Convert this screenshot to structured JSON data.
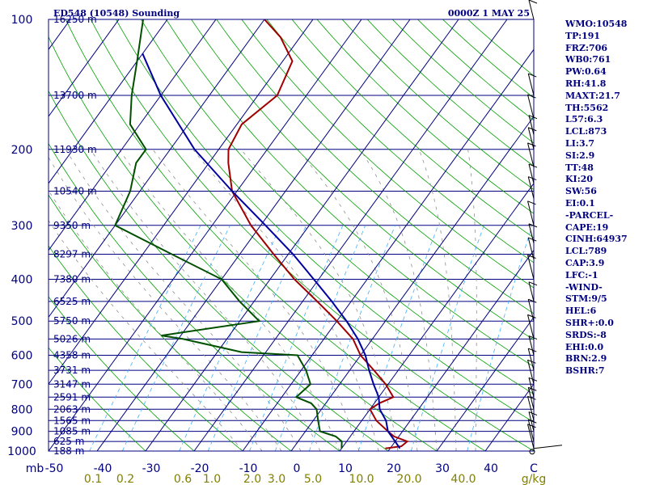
{
  "header": {
    "station": "ED548 (10548) Sounding",
    "time": "0000Z  1 MAY 25"
  },
  "chart_data": {
    "type": "skew-t",
    "pressure_ticks": [
      "100",
      "200",
      "300",
      "400",
      "500",
      "600",
      "700",
      "800",
      "900",
      "1000"
    ],
    "height_labels": [
      {
        "p": 100,
        "label": "16250 m"
      },
      {
        "p": 150,
        "label": "13700 m"
      },
      {
        "p": 200,
        "label": "11930 m"
      },
      {
        "p": 250,
        "label": "10540 m"
      },
      {
        "p": 300,
        "label": "9350 m"
      },
      {
        "p": 350,
        "label": "8297 m"
      },
      {
        "p": 400,
        "label": "7380 m"
      },
      {
        "p": 450,
        "label": "6525 m"
      },
      {
        "p": 500,
        "label": "5750 m"
      },
      {
        "p": 550,
        "label": "5026 m"
      },
      {
        "p": 600,
        "label": "4358 m"
      },
      {
        "p": 650,
        "label": "3731 m"
      },
      {
        "p": 700,
        "label": "3147 m"
      },
      {
        "p": 750,
        "label": "2591 m"
      },
      {
        "p": 800,
        "label": "2063 m"
      },
      {
        "p": 850,
        "label": "1565 m"
      },
      {
        "p": 900,
        "label": "1085 m"
      },
      {
        "p": 950,
        "label": "625 m"
      },
      {
        "p": 1000,
        "label": "188 m"
      }
    ],
    "temperature_ticks": [
      "-50",
      "-40",
      "-30",
      "-20",
      "-10",
      "0",
      "10",
      "20",
      "30",
      "40",
      "C"
    ],
    "pressure_unit": "mb",
    "mixing_ratio_labels": [
      "0.1",
      "0.2",
      "0.6",
      "1.0",
      "2.0",
      "3.0",
      "5.0",
      "10.0",
      "20.0",
      "40.0",
      "g/kg"
    ],
    "xlim_celsius_at_1000mb": [
      -50,
      50
    ],
    "ylim_hpa": [
      1000,
      100
    ],
    "log_pressure": true,
    "series": [
      {
        "color": "#a00000",
        "points": [
          [
            986,
            19
          ],
          [
            975,
            22
          ],
          [
            950,
            22.5
          ],
          [
            925,
            19
          ],
          [
            900,
            17
          ],
          [
            850,
            13
          ],
          [
            800,
            10
          ],
          [
            775,
            11
          ],
          [
            750,
            13
          ],
          [
            700,
            9.5
          ],
          [
            650,
            5
          ],
          [
            600,
            0
          ],
          [
            550,
            -4
          ],
          [
            500,
            -10
          ],
          [
            450,
            -17
          ],
          [
            400,
            -25
          ],
          [
            350,
            -33
          ],
          [
            300,
            -42
          ],
          [
            250,
            -51
          ],
          [
            215,
            -56
          ],
          [
            200,
            -58
          ],
          [
            175,
            -59
          ],
          [
            150,
            -56
          ],
          [
            125,
            -58
          ],
          [
            110,
            -64
          ],
          [
            100,
            -70
          ]
        ]
      },
      {
        "color": "#005000",
        "points": [
          [
            986,
            10
          ],
          [
            950,
            9
          ],
          [
            925,
            7
          ],
          [
            900,
            3
          ],
          [
            850,
            1
          ],
          [
            800,
            -1
          ],
          [
            775,
            -3
          ],
          [
            750,
            -7
          ],
          [
            700,
            -6
          ],
          [
            650,
            -9
          ],
          [
            600,
            -13
          ],
          [
            590,
            -25
          ],
          [
            550,
            -39
          ],
          [
            540,
            -44
          ],
          [
            500,
            -26
          ],
          [
            450,
            -33
          ],
          [
            400,
            -40
          ],
          [
            350,
            -54
          ],
          [
            300,
            -70
          ],
          [
            250,
            -72
          ],
          [
            215,
            -75
          ],
          [
            200,
            -75
          ],
          [
            175,
            -82
          ],
          [
            150,
            -86
          ],
          [
            125,
            -90
          ],
          [
            100,
            -95
          ]
        ]
      },
      {
        "color": "#0000a0",
        "points": [
          [
            986,
            22
          ],
          [
            950,
            20
          ],
          [
            900,
            17
          ],
          [
            850,
            15
          ],
          [
            800,
            12
          ],
          [
            750,
            10
          ],
          [
            700,
            7
          ],
          [
            650,
            4
          ],
          [
            600,
            1
          ],
          [
            550,
            -3
          ],
          [
            500,
            -8
          ],
          [
            450,
            -14
          ],
          [
            400,
            -21
          ],
          [
            350,
            -29
          ],
          [
            300,
            -39
          ],
          [
            250,
            -51
          ],
          [
            200,
            -65
          ],
          [
            150,
            -80
          ],
          [
            120,
            -90
          ]
        ]
      }
    ],
    "grid": true
  },
  "indices": [
    "WMO:10548",
    "TP:191",
    "FRZ:706",
    "WB0:761",
    "PW:0.64",
    "RH:41.8",
    "MAXT:21.7",
    "TH:5562",
    "L57:6.3",
    "LCL:873",
    "LI:3.7",
    "SI:2.9",
    "TT:48",
    "KI:20",
    "SW:56",
    "EI:0.1",
    "-PARCEL-",
    "CAPE:19",
    "CINH:64937",
    "LCL:789",
    "CAP:3.9",
    "LFC:-1",
    "-WIND-",
    "STM:9/5",
    "HEL:6",
    "SHR+:0.0",
    "SRDS:-8",
    "EHI:0.0",
    "BRN:2.9",
    "BSHR:7"
  ]
}
